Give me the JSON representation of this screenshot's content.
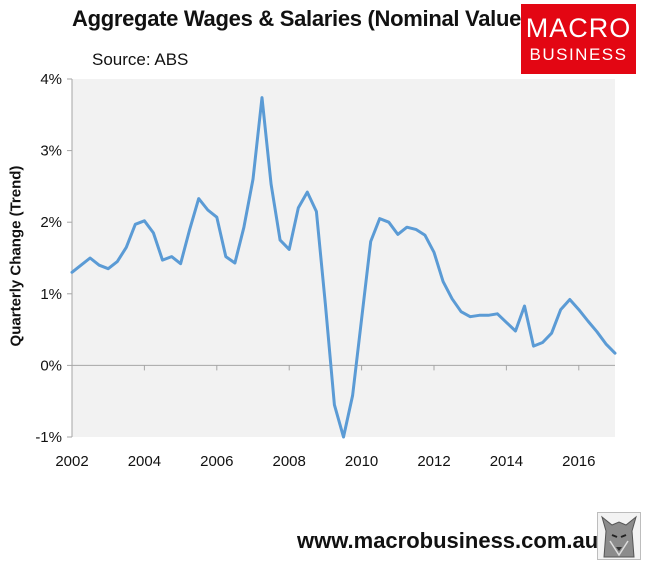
{
  "header": {
    "title": "Aggregate Wages & Salaries (Nominal Values)",
    "source": "Source: ABS"
  },
  "logo": {
    "line1": "MACRO",
    "line2": "BUSINESS",
    "color": "#e30613"
  },
  "footer": {
    "website": "www.macrobusiness.com.au"
  },
  "colors": {
    "line": "#5b9bd5",
    "plot_bg": "#f2f2f2",
    "axis": "#a6a6a6"
  },
  "chart_data": {
    "type": "line",
    "title": "Aggregate Wages & Salaries (Nominal Values)",
    "ylabel": "Quarterly Change (Trend)",
    "xlabel": "",
    "xlim": [
      2002,
      2017
    ],
    "ylim": [
      -1,
      4
    ],
    "x_ticks": [
      2002,
      2004,
      2006,
      2008,
      2010,
      2012,
      2014,
      2016
    ],
    "x_tick_labels": [
      "2002",
      "2004",
      "2006",
      "2008",
      "2010",
      "2012",
      "2014",
      "2016"
    ],
    "y_ticks": [
      -1,
      0,
      1,
      2,
      3,
      4
    ],
    "y_tick_labels": [
      "-1%",
      "0%",
      "1%",
      "2%",
      "3%",
      "4%"
    ],
    "grid": false,
    "legend": "none",
    "series": [
      {
        "x": [
          2002.0,
          2002.25,
          2002.5,
          2002.75,
          2003.0,
          2003.25,
          2003.5,
          2003.75,
          2004.0,
          2004.25,
          2004.5,
          2004.75,
          2005.0,
          2005.25,
          2005.5,
          2005.75,
          2006.0,
          2006.25,
          2006.5,
          2006.75,
          2007.0,
          2007.25,
          2007.5,
          2007.75,
          2008.0,
          2008.25,
          2008.5,
          2008.75,
          2009.0,
          2009.25,
          2009.5,
          2009.75,
          2010.0,
          2010.25,
          2010.5,
          2010.75,
          2011.0,
          2011.25,
          2011.5,
          2011.75,
          2012.0,
          2012.25,
          2012.5,
          2012.75,
          2013.0,
          2013.25,
          2013.5,
          2013.75,
          2014.0,
          2014.25,
          2014.5,
          2014.75,
          2015.0,
          2015.25,
          2015.5,
          2015.75,
          2016.0,
          2016.25,
          2016.5,
          2016.75,
          2017.0
        ],
        "values": [
          1.3,
          1.4,
          1.5,
          1.4,
          1.35,
          1.45,
          1.65,
          1.97,
          2.02,
          1.85,
          1.47,
          1.52,
          1.42,
          1.9,
          2.33,
          2.17,
          2.07,
          1.52,
          1.43,
          1.93,
          2.6,
          3.74,
          2.53,
          1.75,
          1.62,
          2.2,
          2.42,
          2.15,
          0.85,
          -0.55,
          -1.0,
          -0.42,
          0.65,
          1.73,
          2.05,
          2.0,
          1.83,
          1.93,
          1.9,
          1.82,
          1.58,
          1.17,
          0.93,
          0.75,
          0.68,
          0.7,
          0.7,
          0.72,
          0.6,
          0.48,
          0.83,
          0.27,
          0.32,
          0.45,
          0.78,
          0.92,
          0.78,
          0.62,
          0.47,
          0.3,
          0.17
        ]
      }
    ]
  }
}
